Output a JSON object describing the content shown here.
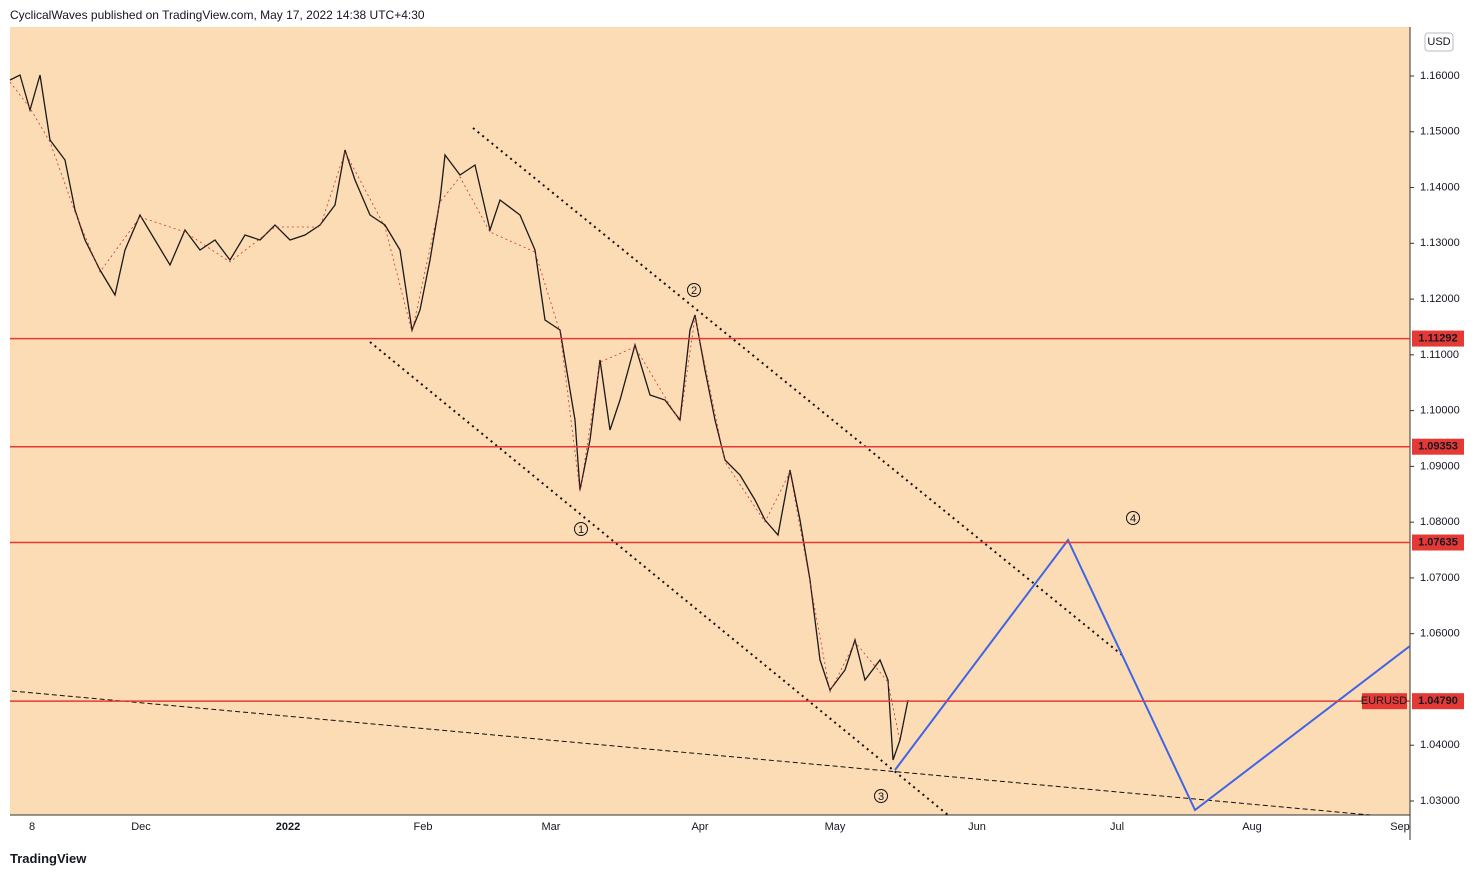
{
  "header": {
    "text": "CyclicalWaves published on TradingView.com, May 17, 2022 14:38 UTC+4:30"
  },
  "footer": {
    "brand": "TradingView"
  },
  "price_axis": {
    "currency": "USD",
    "ticks": [
      {
        "value": 1.16,
        "label": "1.16000"
      },
      {
        "value": 1.15,
        "label": "1.15000"
      },
      {
        "value": 1.14,
        "label": "1.14000"
      },
      {
        "value": 1.13,
        "label": "1.13000"
      },
      {
        "value": 1.12,
        "label": "1.12000"
      },
      {
        "value": 1.11,
        "label": "1.11000"
      },
      {
        "value": 1.1,
        "label": "1.10000"
      },
      {
        "value": 1.09,
        "label": "1.09000"
      },
      {
        "value": 1.08,
        "label": "1.08000"
      },
      {
        "value": 1.07,
        "label": "1.07000"
      },
      {
        "value": 1.06,
        "label": "1.06000"
      },
      {
        "value": 1.04,
        "label": "1.04000"
      },
      {
        "value": 1.03,
        "label": "1.03000"
      }
    ]
  },
  "levels": [
    {
      "value": 1.11292,
      "label": "1.11292"
    },
    {
      "value": 1.09353,
      "label": "1.09353"
    },
    {
      "value": 1.07635,
      "label": "1.07635"
    },
    {
      "value": 1.0479,
      "label": "1.04790"
    }
  ],
  "symbol": "EURUSD",
  "time_axis": [
    "8",
    "Dec",
    "2022",
    "Feb",
    "Mar",
    "Apr",
    "May",
    "Jun",
    "Jul",
    "Aug",
    "Sep"
  ],
  "waves": [
    "1",
    "2",
    "3",
    "4"
  ]
}
